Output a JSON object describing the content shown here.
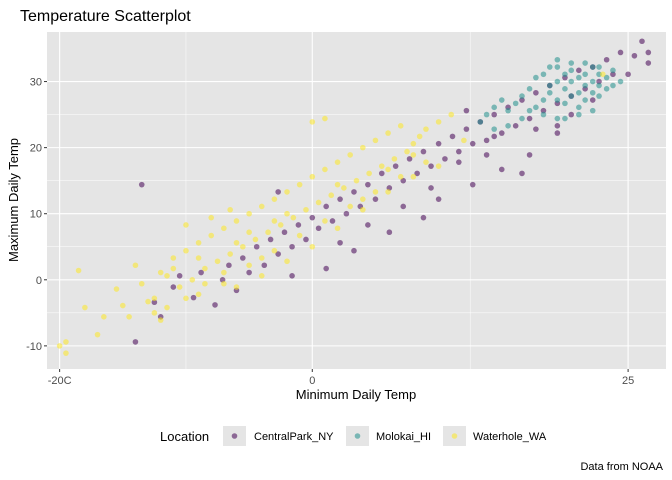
{
  "chart_data": {
    "type": "scatter",
    "title": "Temperature Scatterplot",
    "xlabel": "Minimum Daily Temp",
    "ylabel": "Maximum Daily Temp",
    "caption": "Data from NOAA",
    "xlim": [
      -21,
      28
    ],
    "ylim": [
      -13.5,
      37.5
    ],
    "x_ticks": [
      {
        "value": -20,
        "label": "-20C"
      },
      {
        "value": 0,
        "label": "0"
      },
      {
        "value": 25,
        "label": "25"
      }
    ],
    "y_ticks": [
      {
        "value": -10,
        "label": "-10"
      },
      {
        "value": 0,
        "label": "0"
      },
      {
        "value": 10,
        "label": "10"
      },
      {
        "value": 20,
        "label": "20"
      },
      {
        "value": 30,
        "label": "30"
      }
    ],
    "grid": true,
    "legend_position": "bottom",
    "legend_title": "Location",
    "colors": {
      "panel_bg": "#e5e5e5",
      "grid": "#ffffff",
      "CentralPark_NY": "#440154",
      "Molokai_HI": "#21908c",
      "Waterhole_WA": "#fde725"
    },
    "series": [
      {
        "name": "CentralPark_NY",
        "points": [
          [
            -14,
            -9.4
          ],
          [
            -13.5,
            14.4
          ],
          [
            -12.5,
            -3.4
          ],
          [
            -12,
            -5.6
          ],
          [
            -11,
            -1.1
          ],
          [
            -10.5,
            0.6
          ],
          [
            -9.4,
            -2.7
          ],
          [
            -8.8,
            1.1
          ],
          [
            -7.7,
            -3.8
          ],
          [
            -7.1,
            0
          ],
          [
            -6.6,
            2.2
          ],
          [
            -6,
            -1.6
          ],
          [
            -5.5,
            3.3
          ],
          [
            -5,
            1.1
          ],
          [
            -4.4,
            5
          ],
          [
            -3.8,
            2.2
          ],
          [
            -3.3,
            6.1
          ],
          [
            -2.7,
            3.9
          ],
          [
            -2.7,
            13.3
          ],
          [
            -2.2,
            7.2
          ],
          [
            -1.6,
            5
          ],
          [
            -1.1,
            8.3
          ],
          [
            -0.5,
            6.1
          ],
          [
            0,
            9.4
          ],
          [
            0.5,
            7.8
          ],
          [
            1.1,
            11.1
          ],
          [
            1.6,
            8.9
          ],
          [
            2.2,
            12.2
          ],
          [
            2.7,
            10
          ],
          [
            3.3,
            13.3
          ],
          [
            3.8,
            11.1
          ],
          [
            4.4,
            14.4
          ],
          [
            5,
            12.2
          ],
          [
            5.5,
            16.1
          ],
          [
            6.1,
            13.9
          ],
          [
            6.6,
            17.2
          ],
          [
            7.2,
            15
          ],
          [
            7.7,
            18.3
          ],
          [
            8.3,
            16.1
          ],
          [
            8.8,
            19.4
          ],
          [
            9.4,
            17.2
          ],
          [
            10,
            20.6
          ],
          [
            10.5,
            18.3
          ],
          [
            11.1,
            21.7
          ],
          [
            11.6,
            19.4
          ],
          [
            12.2,
            22.8
          ],
          [
            12.7,
            20.6
          ],
          [
            13.3,
            23.9
          ],
          [
            13.8,
            21.1
          ],
          [
            14.4,
            25
          ],
          [
            15,
            22.2
          ],
          [
            15.5,
            26.1
          ],
          [
            16.1,
            23.3
          ],
          [
            16.6,
            27.2
          ],
          [
            17.2,
            24.4
          ],
          [
            17.7,
            28.3
          ],
          [
            18.3,
            25.6
          ],
          [
            18.8,
            29.4
          ],
          [
            19.4,
            26.7
          ],
          [
            20,
            30.6
          ],
          [
            20.5,
            27.8
          ],
          [
            21.1,
            31.7
          ],
          [
            21.6,
            28.9
          ],
          [
            22.2,
            32.2
          ],
          [
            22.7,
            30
          ],
          [
            23.3,
            33.3
          ],
          [
            23.8,
            31.1
          ],
          [
            24.4,
            34.4
          ],
          [
            25.5,
            33.9
          ],
          [
            26.1,
            36.1
          ],
          [
            26.6,
            34.4
          ],
          [
            26.6,
            32.8
          ],
          [
            25,
            31.1
          ],
          [
            19.4,
            22.2
          ],
          [
            17.2,
            18.9
          ],
          [
            15,
            16.7
          ],
          [
            16.6,
            16.1
          ],
          [
            12.7,
            14.4
          ],
          [
            10,
            12.2
          ],
          [
            8.8,
            9.4
          ],
          [
            6.1,
            7.2
          ],
          [
            3.3,
            4.4
          ],
          [
            1.1,
            1.7
          ],
          [
            -1.6,
            0.6
          ],
          [
            2.2,
            5.6
          ],
          [
            4.4,
            8.3
          ],
          [
            7.2,
            11.1
          ],
          [
            9.4,
            13.9
          ],
          [
            11.6,
            17.8
          ],
          [
            13.8,
            18.9
          ],
          [
            14.4,
            21.7
          ],
          [
            17.7,
            22.8
          ],
          [
            20.5,
            25
          ],
          [
            22.2,
            27.2
          ],
          [
            19.4,
            23.3
          ],
          [
            12.2,
            25.6
          ]
        ]
      },
      {
        "name": "Molokai_HI",
        "points": [
          [
            13.3,
            23.9
          ],
          [
            13.8,
            25
          ],
          [
            14.4,
            26.1
          ],
          [
            15,
            27.2
          ],
          [
            15.5,
            25.6
          ],
          [
            16.1,
            26.7
          ],
          [
            16.6,
            27.8
          ],
          [
            17.2,
            28.9
          ],
          [
            17.7,
            26.1
          ],
          [
            17.7,
            30.6
          ],
          [
            18.3,
            27.2
          ],
          [
            18.3,
            31.1
          ],
          [
            18.8,
            28.3
          ],
          [
            18.8,
            29.4
          ],
          [
            19.4,
            27.2
          ],
          [
            19.4,
            30
          ],
          [
            19.4,
            32.2
          ],
          [
            20,
            26.7
          ],
          [
            20,
            28.9
          ],
          [
            20,
            31.1
          ],
          [
            20.5,
            27.8
          ],
          [
            20.5,
            30
          ],
          [
            20.5,
            31.7
          ],
          [
            21.1,
            26.1
          ],
          [
            21.1,
            28.3
          ],
          [
            21.1,
            30.6
          ],
          [
            21.6,
            27.2
          ],
          [
            21.6,
            29.4
          ],
          [
            21.6,
            31.1
          ],
          [
            22.2,
            28.3
          ],
          [
            22.2,
            30
          ],
          [
            22.2,
            32.2
          ],
          [
            22.7,
            27.8
          ],
          [
            22.7,
            29.4
          ],
          [
            22.7,
            31.1
          ],
          [
            23.3,
            28.9
          ],
          [
            23.3,
            30.6
          ],
          [
            23.8,
            29.4
          ],
          [
            23.8,
            31.7
          ],
          [
            24.4,
            30
          ],
          [
            19.4,
            24.4
          ],
          [
            20,
            24.4
          ],
          [
            21.1,
            25
          ],
          [
            22.2,
            25.6
          ],
          [
            18.3,
            25
          ],
          [
            17.2,
            25.6
          ],
          [
            16.6,
            24.4
          ],
          [
            15.5,
            23.3
          ],
          [
            14.4,
            22.8
          ],
          [
            20.5,
            32.8
          ],
          [
            19.4,
            33.3
          ],
          [
            22.7,
            32.2
          ],
          [
            21.6,
            32.8
          ],
          [
            18.8,
            32.2
          ]
        ]
      },
      {
        "name": "Waterhole_WA",
        "points": [
          [
            -20,
            -10
          ],
          [
            -19.5,
            -11.1
          ],
          [
            -19.5,
            -9.4
          ],
          [
            -18.5,
            1.4
          ],
          [
            -18,
            -4.2
          ],
          [
            -17,
            -8.3
          ],
          [
            -16.5,
            -5.6
          ],
          [
            -15.5,
            -1.4
          ],
          [
            -14.5,
            -5.6
          ],
          [
            -13.5,
            -0.6
          ],
          [
            -12.5,
            -2.8
          ],
          [
            -12,
            1.1
          ],
          [
            -11.5,
            -4.2
          ],
          [
            -11,
            3.3
          ],
          [
            -10.5,
            -1.1
          ],
          [
            -10,
            4.4
          ],
          [
            -9.5,
            0
          ],
          [
            -9,
            5.6
          ],
          [
            -8.5,
            1.7
          ],
          [
            -8,
            6.7
          ],
          [
            -7.5,
            2.8
          ],
          [
            -7,
            7.8
          ],
          [
            -6.5,
            3.9
          ],
          [
            -6,
            8.9
          ],
          [
            -5.5,
            5
          ],
          [
            -5,
            10
          ],
          [
            -4.5,
            6.1
          ],
          [
            -4,
            11.1
          ],
          [
            -3.5,
            7.2
          ],
          [
            -3,
            12.2
          ],
          [
            -2.5,
            8.3
          ],
          [
            -2,
            13.3
          ],
          [
            -1.5,
            9.4
          ],
          [
            -1,
            14.4
          ],
          [
            -0.5,
            10.6
          ],
          [
            0,
            15.6
          ],
          [
            0.5,
            11.7
          ],
          [
            1,
            16.7
          ],
          [
            1.5,
            12.8
          ],
          [
            2,
            17.8
          ],
          [
            2.5,
            13.9
          ],
          [
            3,
            18.9
          ],
          [
            3.5,
            15
          ],
          [
            4,
            20
          ],
          [
            4.5,
            16.1
          ],
          [
            5,
            21.1
          ],
          [
            5.5,
            17.2
          ],
          [
            6,
            22.2
          ],
          [
            6.5,
            18.3
          ],
          [
            7,
            23.3
          ],
          [
            7.5,
            19.4
          ],
          [
            8,
            20.6
          ],
          [
            8.5,
            21.7
          ],
          [
            9,
            22.8
          ],
          [
            10,
            23.9
          ],
          [
            11,
            25
          ],
          [
            1,
            24.4
          ],
          [
            0,
            23.9
          ],
          [
            -10,
            8.3
          ],
          [
            -11,
            1.7
          ],
          [
            -13,
            -3.3
          ],
          [
            -12,
            -6.1
          ],
          [
            -9,
            -2.2
          ],
          [
            -7,
            -0.6
          ],
          [
            -5,
            2.2
          ],
          [
            -3,
            4.4
          ],
          [
            -1,
            6.7
          ],
          [
            1,
            8.9
          ],
          [
            3,
            11.1
          ],
          [
            5,
            13.3
          ],
          [
            7,
            15.6
          ],
          [
            9,
            17.8
          ],
          [
            -14,
            2.2
          ],
          [
            -8,
            9.4
          ],
          [
            -6,
            5.6
          ],
          [
            -4,
            3.3
          ],
          [
            -2,
            10
          ],
          [
            2,
            14.4
          ],
          [
            4,
            12.2
          ],
          [
            6,
            16.7
          ],
          [
            8,
            18.9
          ],
          [
            -10,
            -2.8
          ],
          [
            -9,
            3.3
          ],
          [
            -7,
            1.1
          ],
          [
            -6,
            -1.1
          ],
          [
            -5,
            7.2
          ],
          [
            -4,
            0.6
          ],
          [
            -3,
            8.9
          ],
          [
            -2,
            2.8
          ],
          [
            0,
            5
          ],
          [
            2,
            7.8
          ],
          [
            4,
            10.6
          ],
          [
            6,
            13.3
          ],
          [
            8,
            15.6
          ],
          [
            10,
            17.2
          ],
          [
            12,
            21.1
          ],
          [
            -6.5,
            10.6
          ],
          [
            -8.5,
            -0.6
          ],
          [
            -11.5,
            0.6
          ],
          [
            -12.5,
            -5
          ],
          [
            -15,
            -3.9
          ],
          [
            23,
            31.1
          ]
        ]
      }
    ]
  }
}
